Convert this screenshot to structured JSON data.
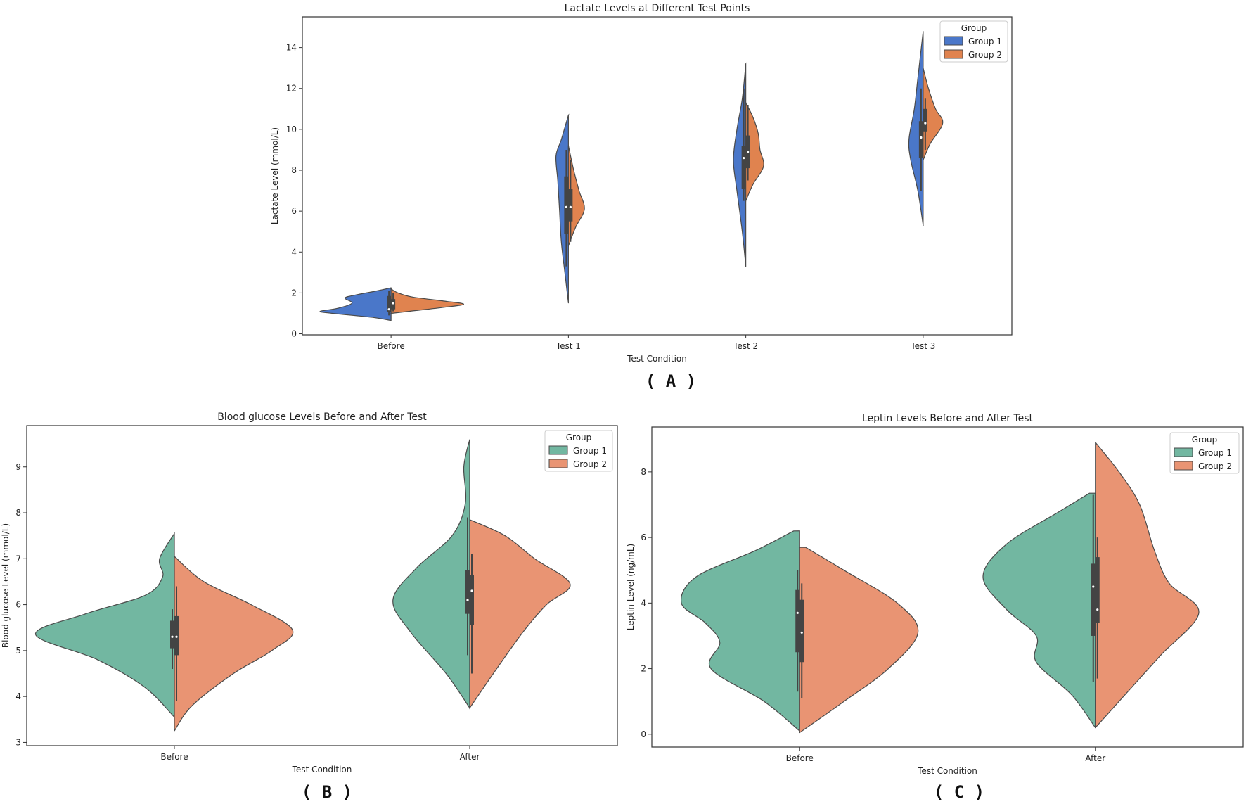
{
  "chart_data": [
    {
      "type": "violin",
      "panel_label": "( A )",
      "title": "Lactate Levels at Different Test Points",
      "xlabel": "Test Condition",
      "ylabel": "Lactate Level (mmol/L)",
      "categories": [
        "Before",
        "Test 1",
        "Test 2",
        "Test 3"
      ],
      "yticks": [
        0,
        2,
        4,
        6,
        8,
        10,
        12,
        14
      ],
      "ylim": [
        -0.05,
        15.5
      ],
      "grid": false,
      "legend": {
        "title": "Group",
        "placement": "top-right",
        "entries": [
          "Group 1",
          "Group 2"
        ]
      },
      "colors": [
        "#4a77c9",
        "#e0834f"
      ],
      "series": [
        {
          "name": "Group 1",
          "density": [
            [
              [
                0.65,
                0
              ],
              [
                0.8,
                0.1
              ],
              [
                1.0,
                0.33
              ],
              [
                1.1,
                0.4
              ],
              [
                1.25,
                0.3
              ],
              [
                1.5,
                0.22
              ],
              [
                1.75,
                0.26
              ],
              [
                1.9,
                0.2
              ],
              [
                2.1,
                0.08
              ],
              [
                2.25,
                0
              ]
            ],
            [
              [
                1.5,
                0
              ],
              [
                3,
                0.02
              ],
              [
                4.5,
                0.04
              ],
              [
                6,
                0.05
              ],
              [
                7.5,
                0.06
              ],
              [
                8.7,
                0.07
              ],
              [
                9.5,
                0.04
              ],
              [
                10.7,
                0
              ]
            ],
            [
              [
                3.3,
                0
              ],
              [
                5,
                0.02
              ],
              [
                7,
                0.05
              ],
              [
                8.5,
                0.07
              ],
              [
                10,
                0.05
              ],
              [
                11.5,
                0.02
              ],
              [
                13.2,
                0
              ]
            ],
            [
              [
                5.3,
                0
              ],
              [
                7,
                0.03
              ],
              [
                8.5,
                0.07
              ],
              [
                9.5,
                0.08
              ],
              [
                11,
                0.05
              ],
              [
                12.5,
                0.03
              ],
              [
                14.8,
                0
              ]
            ]
          ],
          "box": [
            [
              0.9,
              1.05,
              1.2,
              1.85,
              2.1
            ],
            [
              3.3,
              4.9,
              6.2,
              7.7,
              9.0
            ],
            [
              6.5,
              7.1,
              8.6,
              9.2,
              12.0
            ],
            [
              7.0,
              8.6,
              9.6,
              10.4,
              12.0
            ]
          ]
        },
        {
          "name": "Group 2",
          "density": [
            [
              [
                1.0,
                0
              ],
              [
                1.1,
                0.1
              ],
              [
                1.3,
                0.3
              ],
              [
                1.45,
                0.41
              ],
              [
                1.6,
                0.3
              ],
              [
                1.8,
                0.12
              ],
              [
                2.0,
                0.04
              ],
              [
                2.2,
                0
              ]
            ],
            [
              [
                4.3,
                0
              ],
              [
                5.2,
                0.04
              ],
              [
                6.1,
                0.09
              ],
              [
                7,
                0.06
              ],
              [
                8,
                0.03
              ],
              [
                9.2,
                0
              ]
            ],
            [
              [
                6.5,
                0
              ],
              [
                7.3,
                0.04
              ],
              [
                8.2,
                0.1
              ],
              [
                9,
                0.08
              ],
              [
                9.8,
                0.07
              ],
              [
                10.6,
                0.04
              ],
              [
                11.3,
                0
              ]
            ],
            [
              [
                8.5,
                0
              ],
              [
                9.3,
                0.04
              ],
              [
                10.3,
                0.11
              ],
              [
                11,
                0.07
              ],
              [
                12,
                0.03
              ],
              [
                13,
                0
              ]
            ]
          ],
          "box": [
            [
              1.1,
              1.2,
              1.5,
              1.7,
              2.0
            ],
            [
              4.5,
              5.5,
              6.2,
              7.1,
              8.5
            ],
            [
              7.5,
              8.1,
              8.9,
              9.7,
              11.2
            ],
            [
              9.0,
              9.9,
              10.3,
              11.0,
              11.5
            ]
          ]
        }
      ]
    },
    {
      "type": "violin",
      "panel_label": "( B )",
      "title": "Blood glucose Levels Before and After Test",
      "xlabel": "Test Condition",
      "ylabel": "Blood glucose Level (mmol/L)",
      "categories": [
        "Before",
        "After"
      ],
      "yticks": [
        3,
        4,
        5,
        6,
        7,
        8,
        9
      ],
      "ylim": [
        2.93,
        9.9
      ],
      "grid": false,
      "legend": {
        "title": "Group",
        "placement": "top-right",
        "entries": [
          "Group 1",
          "Group 2"
        ]
      },
      "colors": [
        "#72b7a1",
        "#e99473"
      ],
      "series": [
        {
          "name": "Group 1",
          "density": [
            [
              [
                3.55,
                0
              ],
              [
                4.2,
                0.1
              ],
              [
                4.8,
                0.26
              ],
              [
                5.35,
                0.47
              ],
              [
                5.8,
                0.3
              ],
              [
                6.2,
                0.1
              ],
              [
                6.6,
                0.04
              ],
              [
                7.0,
                0.05
              ],
              [
                7.55,
                0
              ]
            ],
            [
              [
                3.75,
                0
              ],
              [
                4.5,
                0.08
              ],
              [
                5.4,
                0.2
              ],
              [
                6.1,
                0.26
              ],
              [
                6.8,
                0.18
              ],
              [
                7.5,
                0.06
              ],
              [
                8.2,
                0.015
              ],
              [
                9.0,
                0.02
              ],
              [
                9.6,
                0
              ]
            ]
          ],
          "box": [
            [
              4.6,
              5.05,
              5.3,
              5.65,
              5.9
            ],
            [
              4.9,
              5.8,
              6.1,
              6.75,
              7.9
            ]
          ]
        },
        {
          "name": "Group 2",
          "density": [
            [
              [
                3.25,
                0
              ],
              [
                3.8,
                0.06
              ],
              [
                4.5,
                0.2
              ],
              [
                5.0,
                0.33
              ],
              [
                5.45,
                0.4
              ],
              [
                6.0,
                0.26
              ],
              [
                6.5,
                0.1
              ],
              [
                7.05,
                0
              ]
            ],
            [
              [
                3.75,
                0
              ],
              [
                4.5,
                0.08
              ],
              [
                5.4,
                0.18
              ],
              [
                6.0,
                0.26
              ],
              [
                6.45,
                0.34
              ],
              [
                7.0,
                0.22
              ],
              [
                7.5,
                0.12
              ],
              [
                7.85,
                0
              ]
            ]
          ],
          "box": [
            [
              3.9,
              4.9,
              5.3,
              5.75,
              6.4
            ],
            [
              4.5,
              5.55,
              6.3,
              6.65,
              7.1
            ]
          ]
        }
      ]
    },
    {
      "type": "violin",
      "panel_label": "( C )",
      "title": "Leptin Levels Before and After Test",
      "xlabel": "Test Condition",
      "ylabel": "Leptin Level (ng/mL)",
      "categories": [
        "Before",
        "After"
      ],
      "yticks": [
        0,
        2,
        4,
        6,
        8
      ],
      "ylim": [
        -0.39,
        9.37
      ],
      "grid": false,
      "legend": {
        "title": "Group",
        "placement": "top-right",
        "entries": [
          "Group 1",
          "Group 2"
        ]
      },
      "colors": [
        "#72b7a1",
        "#e99473"
      ],
      "series": [
        {
          "name": "Group 1",
          "density": [
            [
              [
                0.1,
                0
              ],
              [
                1.0,
                0.12
              ],
              [
                2.0,
                0.3
              ],
              [
                2.8,
                0.27
              ],
              [
                3.4,
                0.32
              ],
              [
                4.0,
                0.4
              ],
              [
                4.8,
                0.35
              ],
              [
                5.6,
                0.15
              ],
              [
                6.2,
                0.02
              ]
            ],
            [
              [
                0.2,
                0
              ],
              [
                1.2,
                0.08
              ],
              [
                2.2,
                0.2
              ],
              [
                3.0,
                0.2
              ],
              [
                3.8,
                0.3
              ],
              [
                4.8,
                0.38
              ],
              [
                5.8,
                0.3
              ],
              [
                6.8,
                0.12
              ],
              [
                7.35,
                0.02
              ]
            ]
          ],
          "box": [
            [
              1.3,
              2.5,
              3.7,
              4.4,
              5.0
            ],
            [
              1.6,
              3.0,
              4.5,
              5.2,
              7.3
            ]
          ]
        },
        {
          "name": "Group 2",
          "density": [
            [
              [
                0.05,
                0
              ],
              [
                1.0,
                0.15
              ],
              [
                2.0,
                0.3
              ],
              [
                3.1,
                0.4
              ],
              [
                4.0,
                0.33
              ],
              [
                5.0,
                0.15
              ],
              [
                5.7,
                0.02
              ]
            ],
            [
              [
                0.2,
                0
              ],
              [
                1.2,
                0.1
              ],
              [
                2.4,
                0.22
              ],
              [
                3.7,
                0.35
              ],
              [
                4.6,
                0.25
              ],
              [
                5.6,
                0.2
              ],
              [
                7.0,
                0.15
              ],
              [
                8.0,
                0.08
              ],
              [
                8.9,
                0
              ]
            ]
          ],
          "box": [
            [
              1.1,
              2.2,
              3.1,
              4.1,
              4.6
            ],
            [
              1.7,
              3.4,
              3.8,
              5.4,
              6.0
            ]
          ]
        }
      ]
    }
  ]
}
